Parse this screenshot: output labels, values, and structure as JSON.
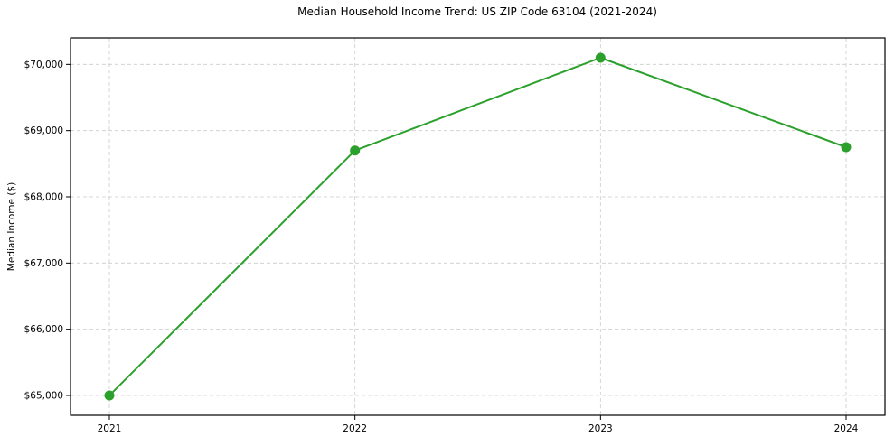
{
  "chart_data": {
    "type": "line",
    "title": "Median Household Income Trend: US ZIP Code 63104 (2021-2024)",
    "xlabel": "",
    "ylabel": "Median Income ($)",
    "categories": [
      "2021",
      "2022",
      "2023",
      "2024"
    ],
    "series": [
      {
        "name": "Median Household Income",
        "values": [
          65000,
          68700,
          70100,
          68750
        ]
      }
    ],
    "ylim": [
      64700,
      70400
    ],
    "yticks": [
      65000,
      66000,
      67000,
      68000,
      69000,
      70000
    ],
    "ytick_labels": [
      "$65,000",
      "$66,000",
      "$67,000",
      "$68,000",
      "$69,000",
      "$70,000"
    ],
    "grid": "dashed, both axes",
    "legend_position": "none",
    "line_color": "#2ca02c",
    "marker": "circle",
    "grid_color": "#cccccc",
    "axis_color": "#000000"
  }
}
